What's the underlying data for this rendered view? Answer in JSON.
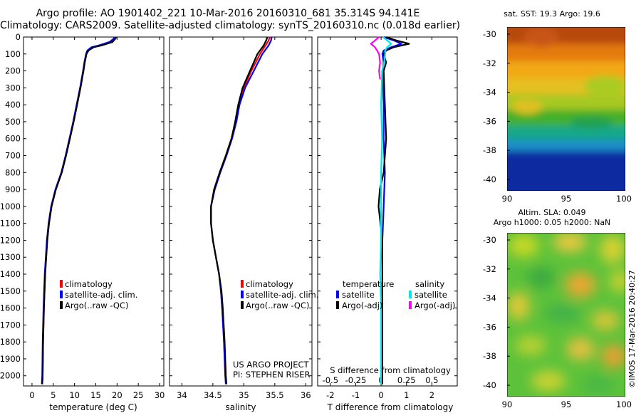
{
  "header": {
    "title_line1": "Argo profile: AO 1901402_221 10-Mar-2016 20160310_681 35.314S 94.141E",
    "title_line2": "Climatology: CARS2009. Satellite-adjusted climatology: synTS_20160310.nc (0.018d earlier)"
  },
  "colors": {
    "climatology": "#ff0000",
    "satellite_adj": "#0000ff",
    "argo": "#000000",
    "sal_satellite": "#00e5ee",
    "sal_argo": "#ff00ff"
  },
  "chart_data": [
    {
      "id": "temperature",
      "type": "line",
      "xlabel": "temperature (deg C)",
      "ylabel": "",
      "xlim": [
        -2,
        31
      ],
      "ylim": [
        2060,
        0
      ],
      "xticks": [
        0,
        5,
        10,
        15,
        20,
        25,
        30
      ],
      "yticks": [
        0,
        100,
        200,
        300,
        400,
        500,
        600,
        700,
        800,
        900,
        1000,
        1100,
        1200,
        1300,
        1400,
        1500,
        1600,
        1700,
        1800,
        1900,
        2000
      ],
      "legend": [
        "climatology",
        "satellite-adj. clim.",
        "Argo(..raw -QC)"
      ],
      "legend_position": "lower-center",
      "series": [
        {
          "name": "climatology",
          "color": "#ff0000",
          "depth": [
            0,
            10,
            30,
            50,
            60,
            80,
            100,
            150,
            200,
            300,
            400,
            500,
            600,
            700,
            800,
            900,
            1000,
            1100,
            1200,
            1400,
            1600,
            1800,
            2000,
            2050
          ],
          "values": [
            19.6,
            19.4,
            18.6,
            16.0,
            14.3,
            13.2,
            12.8,
            12.4,
            12.1,
            11.4,
            10.6,
            9.8,
            8.9,
            8.0,
            7.0,
            5.6,
            4.6,
            4.0,
            3.6,
            3.1,
            2.8,
            2.6,
            2.5,
            2.4
          ]
        },
        {
          "name": "satellite-adj. clim.",
          "color": "#0000ff",
          "depth": [
            0,
            10,
            30,
            50,
            60,
            80,
            100,
            150,
            200,
            300,
            400,
            500,
            600,
            700,
            800,
            900,
            1000,
            1100,
            1200,
            1400,
            1600,
            1800,
            2000,
            2050
          ],
          "values": [
            19.4,
            19.2,
            18.2,
            15.6,
            14.0,
            13.0,
            12.7,
            12.3,
            12.0,
            11.3,
            10.5,
            9.7,
            8.8,
            7.9,
            6.9,
            5.5,
            4.5,
            3.9,
            3.5,
            3.0,
            2.7,
            2.5,
            2.4,
            2.3
          ]
        },
        {
          "name": "Argo(..raw -QC)",
          "color": "#000000",
          "depth": [
            0,
            10,
            30,
            50,
            60,
            80,
            100,
            150,
            200,
            300,
            400,
            500,
            600,
            700,
            800,
            900,
            1000,
            1100,
            1200,
            1400,
            1600,
            1800,
            2000,
            2050
          ],
          "values": [
            19.8,
            19.6,
            18.9,
            16.3,
            14.5,
            13.3,
            12.8,
            12.4,
            12.1,
            11.4,
            10.6,
            9.8,
            8.9,
            8.0,
            7.0,
            5.6,
            4.6,
            4.0,
            3.6,
            3.1,
            2.8,
            2.6,
            2.5,
            2.4
          ]
        }
      ]
    },
    {
      "id": "salinity",
      "type": "line",
      "xlabel": "salinity",
      "ylabel": "",
      "xlim": [
        33.8,
        36.1
      ],
      "ylim": [
        2060,
        0
      ],
      "xticks": [
        34,
        34.5,
        35,
        35.5,
        36
      ],
      "xtick_labels": [
        "34",
        "34.5",
        "35",
        "35.5",
        "36"
      ],
      "legend": [
        "climatology",
        "satellite-adj. clim.",
        "Argo(..raw -QC)"
      ],
      "legend_position": "lower-center",
      "annotation_lines": [
        "US ARGO PROJECT",
        "PI: STEPHEN RISER"
      ],
      "series": [
        {
          "name": "climatology",
          "color": "#ff0000",
          "depth": [
            0,
            20,
            50,
            100,
            200,
            300,
            400,
            500,
            600,
            700,
            800,
            900,
            1000,
            1100,
            1200,
            1300,
            1400,
            1500,
            1600,
            1800,
            2000,
            2050
          ],
          "values": [
            35.42,
            35.4,
            35.35,
            35.26,
            35.12,
            35.0,
            34.92,
            34.87,
            34.8,
            34.71,
            34.61,
            34.52,
            34.47,
            34.47,
            34.5,
            34.55,
            34.6,
            34.63,
            34.65,
            34.68,
            34.7,
            34.71
          ]
        },
        {
          "name": "satellite-adj. clim.",
          "color": "#0000ff",
          "depth": [
            0,
            20,
            50,
            100,
            200,
            300,
            400,
            500,
            600,
            700,
            800,
            900,
            1000,
            1100,
            1200,
            1300,
            1400,
            1500,
            1600,
            1800,
            2000,
            2050
          ],
          "values": [
            35.45,
            35.44,
            35.4,
            35.3,
            35.16,
            35.02,
            34.93,
            34.88,
            34.81,
            34.72,
            34.62,
            34.53,
            34.47,
            34.47,
            34.5,
            34.55,
            34.6,
            34.63,
            34.65,
            34.68,
            34.7,
            34.71
          ]
        },
        {
          "name": "Argo(..raw -QC)",
          "color": "#000000",
          "depth": [
            0,
            20,
            50,
            100,
            200,
            300,
            400,
            500,
            600,
            700,
            800,
            900,
            1000,
            1100,
            1200,
            1300,
            1400,
            1500,
            1600,
            1800,
            2000,
            2050
          ],
          "values": [
            35.38,
            35.36,
            35.32,
            35.22,
            35.1,
            34.98,
            34.91,
            34.86,
            34.8,
            34.71,
            34.61,
            34.52,
            34.47,
            34.47,
            34.5,
            34.55,
            34.6,
            34.64,
            34.66,
            34.69,
            34.71,
            34.72
          ]
        }
      ]
    },
    {
      "id": "difference",
      "type": "line",
      "xlabel": "T difference from climatology",
      "top_label": "S difference from climatology",
      "xlim": [
        -2.5,
        3
      ],
      "ylim": [
        2060,
        0
      ],
      "xticks": [
        -2,
        -1,
        0,
        1,
        2
      ],
      "s_ticks": [
        "-0.5",
        "-0.25",
        "0",
        "0.25",
        "0.5"
      ],
      "legend_temperature_title": "temperature",
      "legend_salinity_title": "salinity",
      "legend": [
        "satellite",
        "Argo(-adj)",
        "satellite",
        "Argo(-adj)"
      ],
      "series": [
        {
          "name": "T satellite",
          "color": "#0000ff",
          "depth": [
            0,
            20,
            40,
            60,
            80,
            100,
            150,
            200,
            400,
            600,
            800,
            1000,
            1200,
            1600,
            2000,
            2050
          ],
          "values": [
            0.1,
            0.5,
            0.8,
            0.4,
            0.1,
            0.05,
            0.1,
            0.05,
            0.1,
            0.1,
            0.15,
            0.1,
            0.05,
            0.05,
            0.05,
            0.05
          ]
        },
        {
          "name": "T Argo(-adj)",
          "color": "#000000",
          "depth": [
            0,
            20,
            40,
            60,
            80,
            100,
            150,
            200,
            400,
            600,
            800,
            900,
            1000,
            1200,
            1600,
            2000,
            2050
          ],
          "values": [
            0.2,
            0.6,
            1.1,
            0.5,
            0.2,
            0.1,
            0.2,
            0.1,
            0.15,
            0.2,
            0.1,
            -0.05,
            -0.1,
            0.05,
            0.05,
            0.05,
            0.05
          ]
        },
        {
          "name": "S satellite",
          "color": "#00e5ee",
          "depth": [
            0,
            20,
            40,
            60,
            80,
            100,
            150,
            200,
            400,
            600,
            800,
            1000,
            1200,
            1400,
            1600,
            2000,
            2050
          ],
          "values": [
            0.02,
            0.06,
            0.1,
            0.06,
            0.04,
            0.04,
            0.03,
            0.01,
            0.0,
            0.01,
            0.0,
            0.0,
            0.0,
            -0.01,
            0.0,
            0.0,
            0.0
          ]
        },
        {
          "name": "S Argo(-adj)",
          "color": "#ff00ff",
          "depth": [
            0,
            20,
            40,
            60,
            80,
            100,
            150,
            200,
            250
          ],
          "values": [
            -0.02,
            -0.06,
            -0.1,
            -0.06,
            -0.04,
            -0.02,
            -0.01,
            -0.02,
            -0.01
          ]
        }
      ]
    }
  ],
  "maps": {
    "sst": {
      "title": "sat. SST: 19.3 Argo: 19.6",
      "yticks": [
        "-30",
        "-32",
        "-34",
        "-36",
        "-38",
        "-40"
      ],
      "xticks": [
        "90",
        "95",
        "100"
      ]
    },
    "sla": {
      "title_line1": "Altim. SLA: 0.049",
      "title_line2": "Argo h1000: 0.05 h2000: NaN",
      "yticks": [
        "-30",
        "-32",
        "-34",
        "-36",
        "-38",
        "-40"
      ],
      "xticks": [
        "90",
        "95",
        "100"
      ]
    }
  },
  "footer": {
    "imos_stamp": "©IMOS 17-Mar-2016 20:40:27"
  }
}
